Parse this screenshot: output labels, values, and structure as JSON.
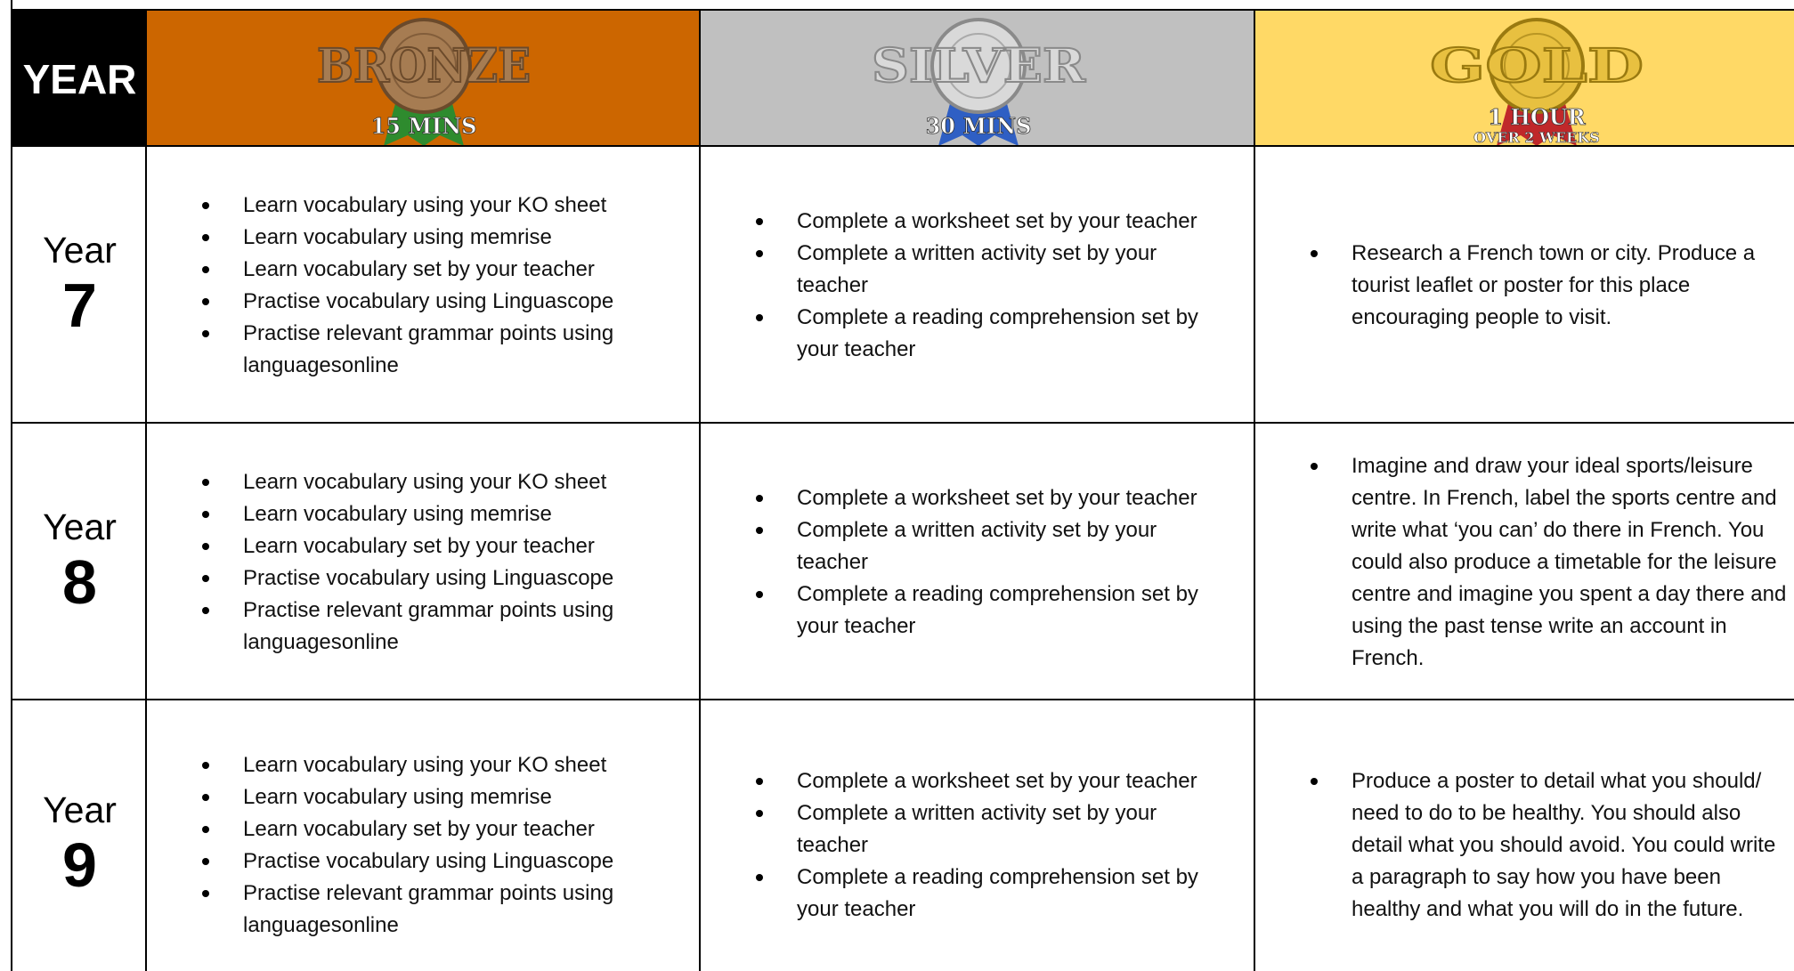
{
  "header": {
    "year": "YEAR",
    "bronze": {
      "title": "BRONZE",
      "time": "15 MINS"
    },
    "silver": {
      "title": "SILVER",
      "time": "30 MINS"
    },
    "gold": {
      "title": "GOLD",
      "time": "1 HOUR",
      "subtime": "OVER 2 WEEKS"
    }
  },
  "rows": [
    {
      "label": "Year",
      "number": "7",
      "bronze": [
        "Learn vocabulary using your KO sheet",
        "Learn vocabulary using memrise",
        "Learn vocabulary set by your teacher",
        "Practise vocabulary using Linguascope",
        "Practise relevant grammar points using languagesonline"
      ],
      "silver": [
        "Complete a worksheet set by your teacher",
        "Complete a written activity set by your teacher",
        "Complete a reading comprehension set by your teacher"
      ],
      "gold": [
        "Research a French town or city. Produce a tourist leaflet or poster for this place encouraging people to visit."
      ]
    },
    {
      "label": "Year",
      "number": "8",
      "bronze": [
        "Learn vocabulary using your KO sheet",
        "Learn vocabulary using memrise",
        "Learn vocabulary set by your teacher",
        "Practise vocabulary using Linguascope",
        "Practise relevant grammar points using languagesonline"
      ],
      "silver": [
        "Complete a worksheet set by your teacher",
        "Complete a written activity set by your teacher",
        "Complete a reading comprehension set by your teacher"
      ],
      "gold": [
        "Imagine and draw your ideal sports/leisure centre. In French, label the sports centre and write what ‘you can’ do there in French. You could also produce a timetable for the leisure centre and imagine you spent a day there and using the past tense write an account in French."
      ]
    },
    {
      "label": "Year",
      "number": "9",
      "bronze": [
        "Learn vocabulary using your KO sheet",
        "Learn vocabulary using memrise",
        "Learn vocabulary set by your teacher",
        "Practise vocabulary using Linguascope",
        "Practise relevant grammar points using languagesonline"
      ],
      "silver": [
        "Complete a worksheet set by your teacher",
        "Complete a written activity set by your teacher",
        "Complete a reading comprehension set by your teacher"
      ],
      "gold": [
        "Produce a poster to detail what you should/ need to do to be healthy. You should also detail what you should avoid. You could write a paragraph to say how you have been healthy and what you will do in the future."
      ]
    }
  ]
}
